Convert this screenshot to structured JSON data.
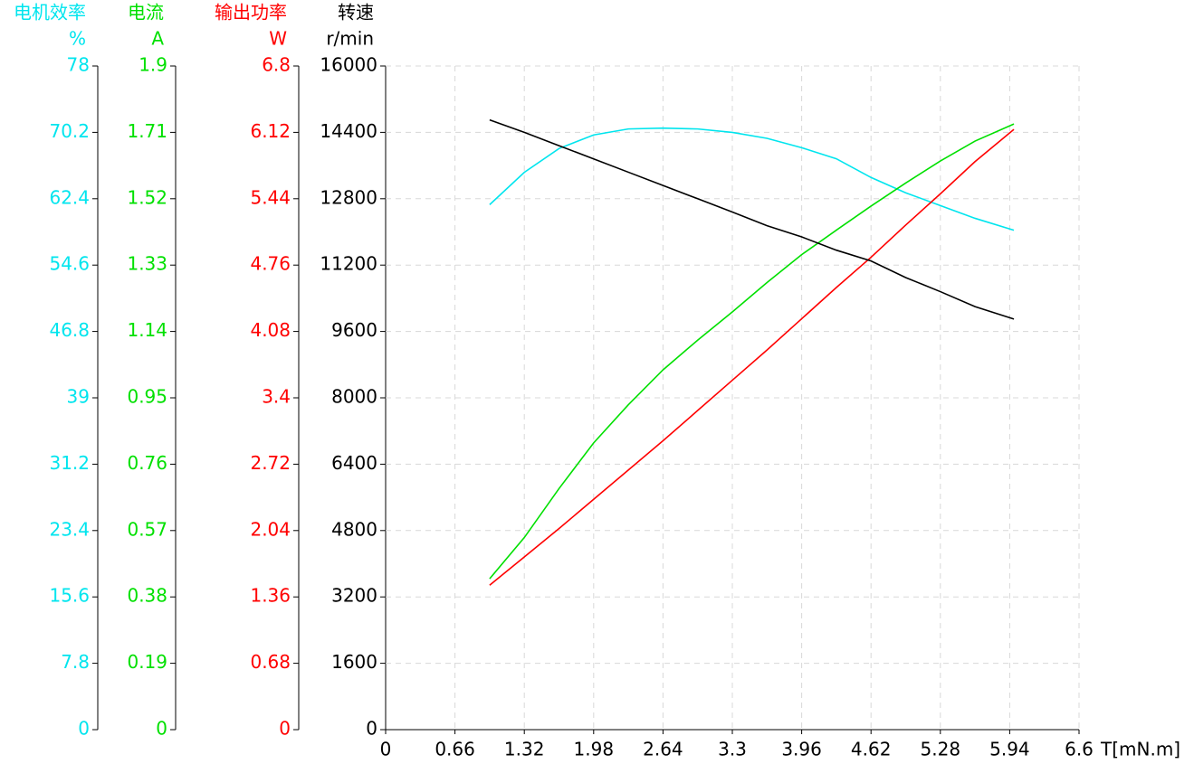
{
  "chart_data": {
    "type": "line",
    "x": [
      0.99,
      1.32,
      1.65,
      1.98,
      2.31,
      2.64,
      2.97,
      3.3,
      3.63,
      3.96,
      4.29,
      4.62,
      4.95,
      5.28,
      5.61,
      5.98
    ],
    "xlim": [
      0,
      6.6
    ],
    "xticks": [
      0,
      0.66,
      1.32,
      1.98,
      2.64,
      3.3,
      3.96,
      4.62,
      5.28,
      5.94,
      6.6
    ],
    "x_label": "T[mN.m]",
    "grid": true,
    "y_axes": [
      {
        "title": "电机效率",
        "unit": "%",
        "color": "#00e5ee",
        "ylim": [
          0,
          78
        ],
        "yticks": [
          0,
          7.8,
          15.6,
          23.4,
          31.2,
          39,
          46.8,
          54.6,
          62.4,
          70.2,
          78
        ]
      },
      {
        "title": "电流",
        "unit": "A",
        "color": "#00e000",
        "ylim": [
          0,
          1.9
        ],
        "yticks": [
          0,
          0.19,
          0.38,
          0.57,
          0.76,
          0.95,
          1.14,
          1.33,
          1.52,
          1.71,
          1.9
        ]
      },
      {
        "title": "输出功率",
        "unit": "W",
        "color": "#ff0000",
        "ylim": [
          0,
          6.8
        ],
        "yticks": [
          0,
          0.68,
          1.36,
          2.04,
          2.72,
          3.4,
          4.08,
          4.76,
          5.44,
          6.12,
          6.8
        ]
      },
      {
        "title": "转速",
        "unit": "r/min",
        "color": "#000000",
        "ylim": [
          0,
          16000
        ],
        "yticks": [
          0,
          1600,
          3200,
          4800,
          6400,
          8000,
          9600,
          11200,
          12800,
          14400,
          16000
        ]
      }
    ],
    "series": [
      {
        "axis": 0,
        "color": "#00e5ee",
        "values": [
          61.7,
          65.5,
          68.3,
          69.9,
          70.6,
          70.7,
          70.6,
          70.2,
          69.5,
          68.4,
          67.1,
          64.9,
          63.1,
          61.6,
          60.1,
          58.7
        ]
      },
      {
        "axis": 1,
        "color": "#00e000",
        "values": [
          0.432,
          0.55,
          0.69,
          0.821,
          0.93,
          1.03,
          1.115,
          1.196,
          1.28,
          1.36,
          1.43,
          1.499,
          1.565,
          1.628,
          1.685,
          1.734
        ]
      },
      {
        "axis": 2,
        "color": "#ff0000",
        "values": [
          1.48,
          1.77,
          2.06,
          2.36,
          2.66,
          2.96,
          3.27,
          3.58,
          3.89,
          4.21,
          4.53,
          4.84,
          5.17,
          5.49,
          5.82,
          6.15
        ]
      },
      {
        "axis": 3,
        "color": "#000000",
        "values": [
          14700,
          14400,
          14080,
          13760,
          13440,
          13120,
          12800,
          12480,
          12150,
          11880,
          11560,
          11300,
          10900,
          10560,
          10200,
          9900
        ]
      }
    ]
  }
}
